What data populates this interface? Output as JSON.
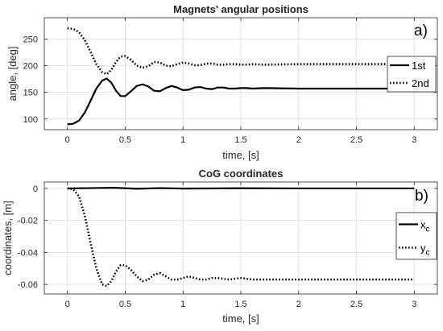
{
  "chart_data": [
    {
      "type": "line",
      "panel_label": "a)",
      "title": "Magnets' angular positions",
      "xlabel": "time, [s]",
      "ylabel": "angle, [deg]",
      "xlim": [
        -0.2,
        3.2
      ],
      "ylim": [
        80,
        290
      ],
      "xticks": [
        0,
        0.5,
        1,
        1.5,
        2,
        2.5,
        3
      ],
      "xtick_labels": [
        "0",
        "0.5",
        "1",
        "1.5",
        "2",
        "2.5",
        "3"
      ],
      "yticks": [
        100,
        150,
        200,
        250
      ],
      "ytick_labels": [
        "100",
        "150",
        "200",
        "250"
      ],
      "grid": true,
      "legend_position": "right",
      "series": [
        {
          "name": "1st",
          "style": "solid",
          "x": [
            0,
            0.05,
            0.1,
            0.15,
            0.2,
            0.25,
            0.3,
            0.34,
            0.38,
            0.42,
            0.46,
            0.5,
            0.55,
            0.6,
            0.65,
            0.7,
            0.75,
            0.8,
            0.85,
            0.9,
            0.95,
            1.0,
            1.05,
            1.1,
            1.15,
            1.2,
            1.25,
            1.3,
            1.35,
            1.4,
            1.45,
            1.5,
            1.55,
            1.6,
            1.7,
            2.0,
            2.5,
            3.0
          ],
          "y": [
            90,
            91,
            97,
            112,
            134,
            157,
            172,
            176,
            168,
            153,
            143,
            143,
            152,
            162,
            165,
            161,
            153,
            152,
            158,
            162,
            159,
            154,
            155,
            159,
            160,
            157,
            156,
            159,
            159,
            157,
            157,
            158,
            158,
            157,
            158,
            157,
            157,
            157
          ]
        },
        {
          "name": "2nd",
          "style": "dotted",
          "x": [
            0,
            0.05,
            0.1,
            0.15,
            0.2,
            0.25,
            0.3,
            0.34,
            0.38,
            0.42,
            0.46,
            0.5,
            0.55,
            0.6,
            0.65,
            0.7,
            0.75,
            0.8,
            0.85,
            0.9,
            0.95,
            1.0,
            1.05,
            1.1,
            1.15,
            1.2,
            1.25,
            1.3,
            1.35,
            1.4,
            1.45,
            1.5,
            1.55,
            1.6,
            1.7,
            2.0,
            2.5,
            3.0
          ],
          "y": [
            270,
            269,
            263,
            248,
            226,
            203,
            188,
            184,
            192,
            207,
            217,
            218,
            211,
            200,
            196,
            199,
            207,
            206,
            200,
            199,
            203,
            206,
            204,
            201,
            201,
            204,
            204,
            202,
            202,
            203,
            203,
            202,
            202,
            203,
            202,
            203,
            203,
            203
          ]
        }
      ]
    },
    {
      "type": "line",
      "panel_label": "b)",
      "title": "CoG coordinates",
      "xlabel": "time, [s]",
      "ylabel": "coordinates, [m]",
      "xlim": [
        -0.2,
        3.2
      ],
      "ylim": [
        -0.066,
        0.004
      ],
      "xticks": [
        0,
        0.5,
        1,
        1.5,
        2,
        2.5,
        3
      ],
      "xtick_labels": [
        "0",
        "0.5",
        "1",
        "1.5",
        "2",
        "2.5",
        "3"
      ],
      "yticks": [
        0,
        -0.02,
        -0.04,
        -0.06
      ],
      "ytick_labels": [
        "0",
        "-0.02",
        "-0.04",
        "-0.06"
      ],
      "grid": true,
      "legend_position": "right",
      "series": [
        {
          "name": "x",
          "name_subscript": "c",
          "style": "solid",
          "x": [
            0,
            0.2,
            0.4,
            0.6,
            0.8,
            1.0,
            1.5,
            2.0,
            2.5,
            3.0
          ],
          "y": [
            0,
            0.0002,
            0.0004,
            -0.0002,
            0.0002,
            -0.0001,
            0.0001,
            0,
            0,
            0
          ]
        },
        {
          "name": "y",
          "name_subscript": "c",
          "style": "dotted",
          "x": [
            0,
            0.05,
            0.1,
            0.15,
            0.2,
            0.25,
            0.3,
            0.34,
            0.38,
            0.42,
            0.46,
            0.5,
            0.55,
            0.6,
            0.65,
            0.7,
            0.75,
            0.8,
            0.85,
            0.9,
            0.95,
            1.0,
            1.05,
            1.1,
            1.15,
            1.2,
            1.25,
            1.3,
            1.4,
            1.5,
            1.6,
            1.8,
            2.0,
            2.5,
            3.0
          ],
          "y": [
            0,
            -0.0005,
            -0.005,
            -0.017,
            -0.034,
            -0.05,
            -0.06,
            -0.061,
            -0.058,
            -0.052,
            -0.048,
            -0.048,
            -0.051,
            -0.055,
            -0.058,
            -0.057,
            -0.054,
            -0.053,
            -0.055,
            -0.057,
            -0.057,
            -0.056,
            -0.055,
            -0.056,
            -0.057,
            -0.057,
            -0.056,
            -0.056,
            -0.057,
            -0.056,
            -0.057,
            -0.057,
            -0.057,
            -0.057,
            -0.057
          ]
        }
      ]
    }
  ]
}
